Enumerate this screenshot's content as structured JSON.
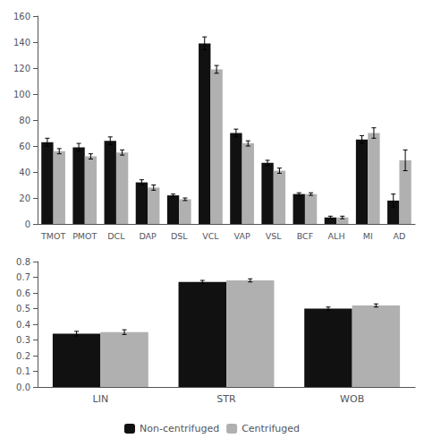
{
  "chart_data": [
    {
      "type": "bar",
      "categories": [
        "TMOT",
        "PMOT",
        "DCL",
        "DAP",
        "DSL",
        "VCL",
        "VAP",
        "VSL",
        "BCF",
        "ALH",
        "MI",
        "AD"
      ],
      "series": [
        {
          "name": "Non-centrifuged",
          "color": "#111111",
          "values": [
            63,
            59,
            64,
            32,
            22,
            139,
            70,
            47,
            23,
            5,
            65,
            18
          ],
          "errors": [
            3,
            3,
            3,
            2,
            1,
            5,
            3,
            2,
            1,
            1,
            3,
            5
          ]
        },
        {
          "name": "Centrifuged",
          "color": "#b0b0b0",
          "values": [
            56,
            52,
            55,
            28,
            19,
            119,
            62,
            41,
            23,
            5,
            70,
            49
          ],
          "errors": [
            2,
            2,
            2,
            2,
            1,
            3,
            2,
            2,
            1,
            1,
            4,
            8
          ]
        }
      ],
      "ylim": [
        0,
        160
      ],
      "yticks": [
        0,
        20,
        40,
        60,
        80,
        100,
        120,
        140,
        160
      ],
      "grid": false
    },
    {
      "type": "bar",
      "categories": [
        "LIN",
        "STR",
        "WOB"
      ],
      "series": [
        {
          "name": "Non-centrifuged",
          "color": "#111111",
          "values": [
            0.34,
            0.67,
            0.5
          ],
          "errors": [
            0.015,
            0.01,
            0.01
          ]
        },
        {
          "name": "Centrifuged",
          "color": "#b0b0b0",
          "values": [
            0.35,
            0.68,
            0.52
          ],
          "errors": [
            0.015,
            0.01,
            0.01
          ]
        }
      ],
      "ylim": [
        0,
        0.8
      ],
      "yticks": [
        {
          "value": 0,
          "label": "0.0"
        },
        0.1,
        0.2,
        0.3,
        0.4,
        0.5,
        0.6,
        0.7,
        0.8
      ],
      "grid": false,
      "legend": "bottom"
    }
  ]
}
